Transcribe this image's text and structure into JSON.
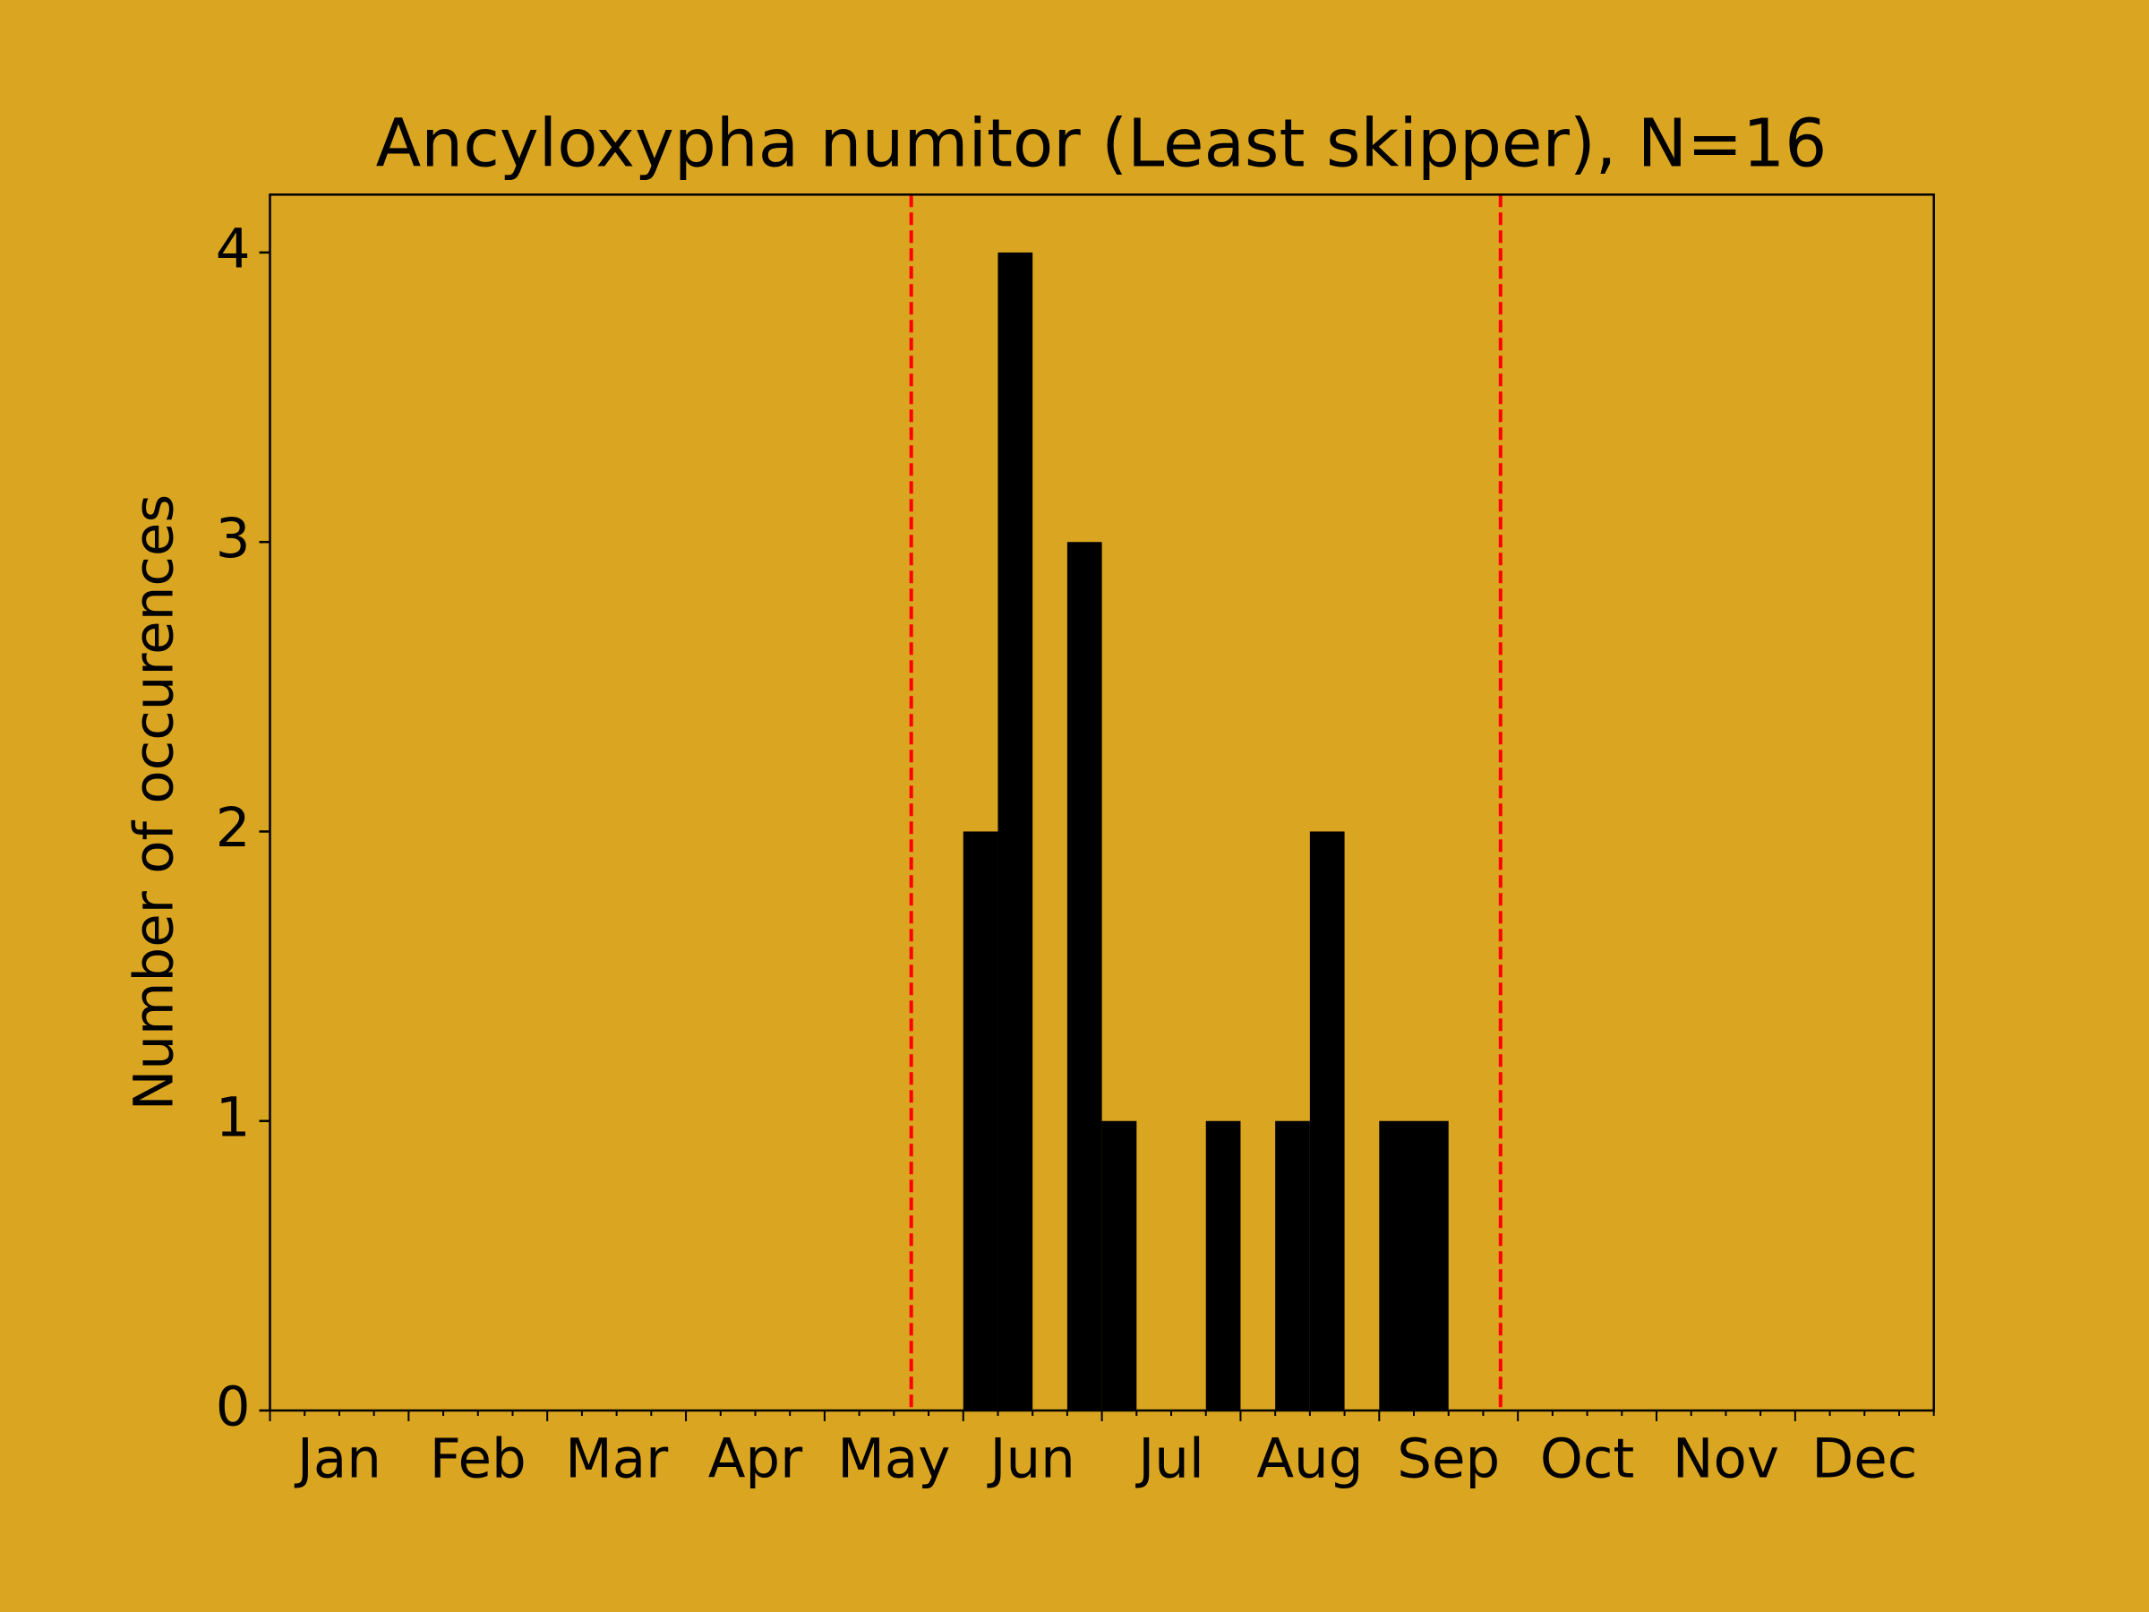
{
  "chart_data": {
    "type": "histogram",
    "title": "Ancyloxypha numitor (Least skipper), N=16",
    "ylabel": "Number of occurences",
    "bins": [
      0,
      1,
      2,
      3,
      4,
      5,
      6,
      7,
      8,
      9,
      10,
      11,
      12,
      13,
      14,
      15,
      16,
      17,
      18,
      19,
      20,
      21,
      22,
      23,
      24,
      25,
      26,
      27,
      28,
      29,
      30,
      31,
      32,
      33,
      34,
      35,
      36,
      37,
      38,
      39,
      40,
      41,
      42,
      43,
      44,
      45,
      46,
      47,
      48
    ],
    "values": [
      0,
      0,
      0,
      0,
      0,
      0,
      0,
      0,
      0,
      0,
      0,
      0,
      0,
      0,
      0,
      0,
      0,
      0,
      0,
      0,
      2,
      4,
      0,
      3,
      1,
      0,
      0,
      1,
      0,
      1,
      2,
      0,
      1,
      1,
      0,
      0,
      0,
      0,
      0,
      0,
      0,
      0,
      0,
      0,
      0,
      0,
      0,
      0
    ],
    "color": "#000000",
    "xlim": [
      0,
      48
    ],
    "ylim": [
      0,
      4.2
    ],
    "xticks": [
      {
        "value": 2,
        "label": "Jan"
      },
      {
        "value": 6,
        "label": "Feb"
      },
      {
        "value": 10,
        "label": "Mar"
      },
      {
        "value": 14,
        "label": "Apr"
      },
      {
        "value": 18,
        "label": "May"
      },
      {
        "value": 22,
        "label": "Jun"
      },
      {
        "value": 26,
        "label": "Jul"
      },
      {
        "value": 30,
        "label": "Aug"
      },
      {
        "value": 34,
        "label": "Sep"
      },
      {
        "value": 38,
        "label": "Oct"
      },
      {
        "value": 42,
        "label": "Nov"
      },
      {
        "value": 46,
        "label": "Dec"
      }
    ],
    "yticks": [
      0,
      1,
      2,
      3,
      4
    ],
    "vlines": [
      18.5,
      35.5
    ],
    "vline_color": "#ff0000"
  }
}
